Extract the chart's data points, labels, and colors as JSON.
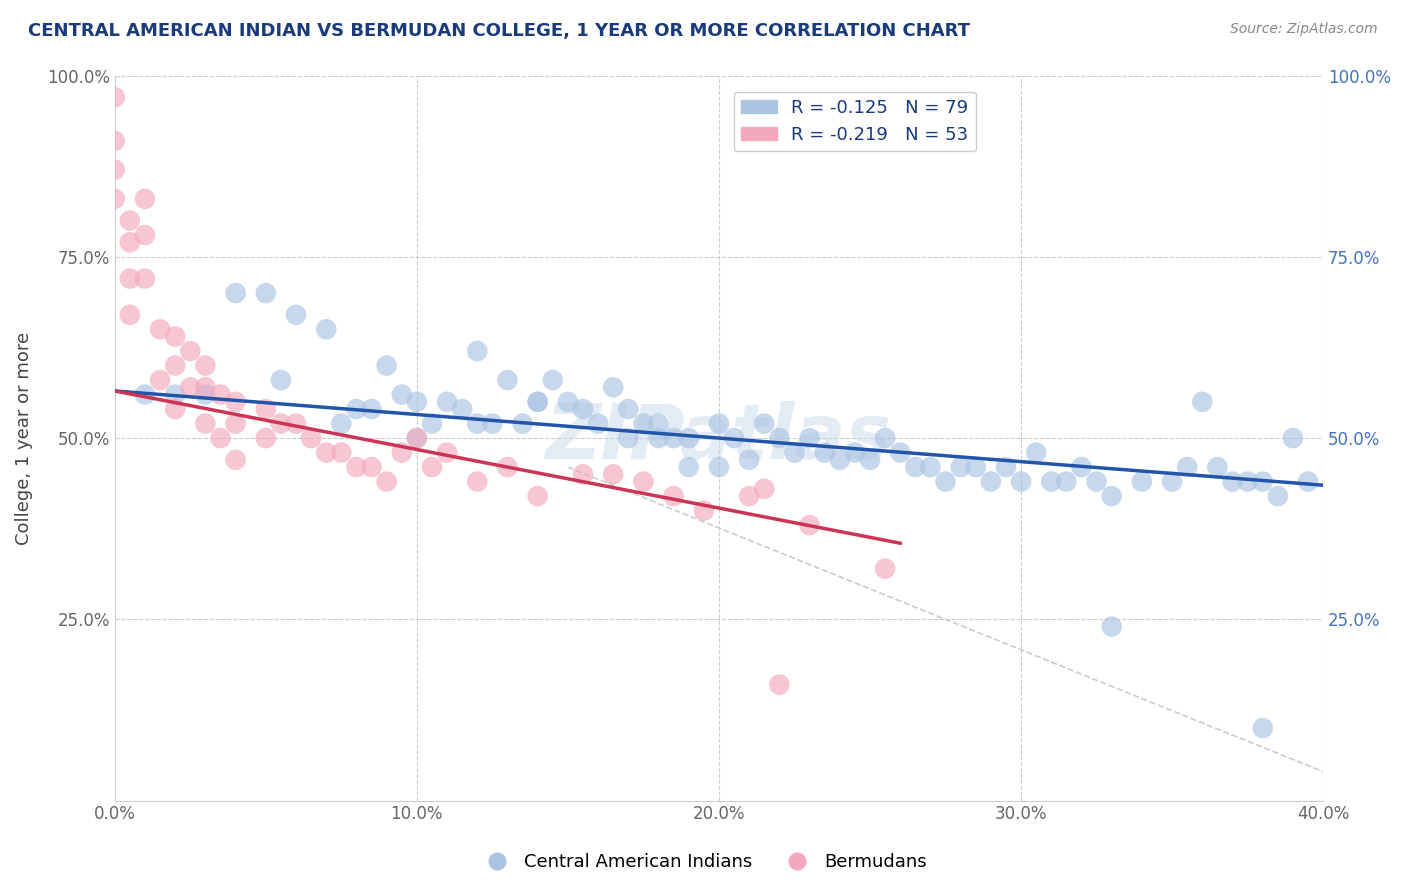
{
  "title": "CENTRAL AMERICAN INDIAN VS BERMUDAN COLLEGE, 1 YEAR OR MORE CORRELATION CHART",
  "source": "Source: ZipAtlas.com",
  "ylabel": "College, 1 year or more",
  "xmin": 0.0,
  "xmax": 0.4,
  "ymin": 0.0,
  "ymax": 1.0,
  "x_tick_labels": [
    "0.0%",
    "10.0%",
    "20.0%",
    "30.0%",
    "40.0%"
  ],
  "x_tick_values": [
    0.0,
    0.1,
    0.2,
    0.3,
    0.4
  ],
  "y_tick_labels": [
    "25.0%",
    "50.0%",
    "75.0%",
    "100.0%"
  ],
  "y_tick_values": [
    0.25,
    0.5,
    0.75,
    1.0
  ],
  "blue_R": -0.125,
  "blue_N": 79,
  "pink_R": -0.219,
  "pink_N": 53,
  "blue_color": "#aac4e2",
  "pink_color": "#f4a8bc",
  "blue_line_color": "#2255aa",
  "pink_line_color": "#cc3355",
  "dashed_line_color": "#cccccc",
  "blue_line_x0": 0.0,
  "blue_line_y0": 0.565,
  "blue_line_x1": 0.4,
  "blue_line_y1": 0.435,
  "pink_line_x0": 0.0,
  "pink_line_y0": 0.565,
  "pink_line_x1": 0.26,
  "pink_line_y1": 0.355,
  "dash_line_x0": 0.15,
  "dash_line_y0": 0.46,
  "dash_line_x1": 0.4,
  "dash_line_y1": 0.04,
  "blue_scatter_x": [
    0.01,
    0.02,
    0.03,
    0.04,
    0.05,
    0.055,
    0.06,
    0.07,
    0.075,
    0.08,
    0.085,
    0.09,
    0.095,
    0.1,
    0.1,
    0.105,
    0.11,
    0.115,
    0.12,
    0.12,
    0.125,
    0.13,
    0.135,
    0.14,
    0.14,
    0.145,
    0.15,
    0.155,
    0.16,
    0.165,
    0.17,
    0.17,
    0.175,
    0.18,
    0.18,
    0.185,
    0.19,
    0.19,
    0.2,
    0.2,
    0.205,
    0.21,
    0.215,
    0.22,
    0.225,
    0.23,
    0.235,
    0.24,
    0.245,
    0.25,
    0.255,
    0.26,
    0.265,
    0.27,
    0.275,
    0.28,
    0.285,
    0.29,
    0.295,
    0.3,
    0.305,
    0.31,
    0.315,
    0.32,
    0.325,
    0.33,
    0.34,
    0.35,
    0.355,
    0.36,
    0.365,
    0.37,
    0.375,
    0.38,
    0.385,
    0.39,
    0.395,
    0.33,
    0.38
  ],
  "blue_scatter_y": [
    0.56,
    0.56,
    0.56,
    0.7,
    0.7,
    0.58,
    0.67,
    0.65,
    0.52,
    0.54,
    0.54,
    0.6,
    0.56,
    0.55,
    0.5,
    0.52,
    0.55,
    0.54,
    0.52,
    0.62,
    0.52,
    0.58,
    0.52,
    0.55,
    0.55,
    0.58,
    0.55,
    0.54,
    0.52,
    0.57,
    0.5,
    0.54,
    0.52,
    0.5,
    0.52,
    0.5,
    0.46,
    0.5,
    0.46,
    0.52,
    0.5,
    0.47,
    0.52,
    0.5,
    0.48,
    0.5,
    0.48,
    0.47,
    0.48,
    0.47,
    0.5,
    0.48,
    0.46,
    0.46,
    0.44,
    0.46,
    0.46,
    0.44,
    0.46,
    0.44,
    0.48,
    0.44,
    0.44,
    0.46,
    0.44,
    0.42,
    0.44,
    0.44,
    0.46,
    0.55,
    0.46,
    0.44,
    0.44,
    0.44,
    0.42,
    0.5,
    0.44,
    0.24,
    0.1
  ],
  "pink_scatter_x": [
    0.0,
    0.0,
    0.0,
    0.0,
    0.005,
    0.005,
    0.005,
    0.005,
    0.01,
    0.01,
    0.01,
    0.015,
    0.015,
    0.02,
    0.02,
    0.02,
    0.025,
    0.025,
    0.03,
    0.03,
    0.03,
    0.035,
    0.035,
    0.04,
    0.04,
    0.04,
    0.05,
    0.05,
    0.055,
    0.06,
    0.065,
    0.07,
    0.075,
    0.08,
    0.085,
    0.09,
    0.095,
    0.1,
    0.105,
    0.11,
    0.12,
    0.13,
    0.14,
    0.155,
    0.165,
    0.175,
    0.185,
    0.195,
    0.21,
    0.215,
    0.22,
    0.23,
    0.255
  ],
  "pink_scatter_y": [
    0.97,
    0.91,
    0.87,
    0.83,
    0.8,
    0.77,
    0.72,
    0.67,
    0.83,
    0.78,
    0.72,
    0.65,
    0.58,
    0.64,
    0.6,
    0.54,
    0.62,
    0.57,
    0.6,
    0.57,
    0.52,
    0.56,
    0.5,
    0.55,
    0.52,
    0.47,
    0.54,
    0.5,
    0.52,
    0.52,
    0.5,
    0.48,
    0.48,
    0.46,
    0.46,
    0.44,
    0.48,
    0.5,
    0.46,
    0.48,
    0.44,
    0.46,
    0.42,
    0.45,
    0.45,
    0.44,
    0.42,
    0.4,
    0.42,
    0.43,
    0.16,
    0.38,
    0.32
  ]
}
